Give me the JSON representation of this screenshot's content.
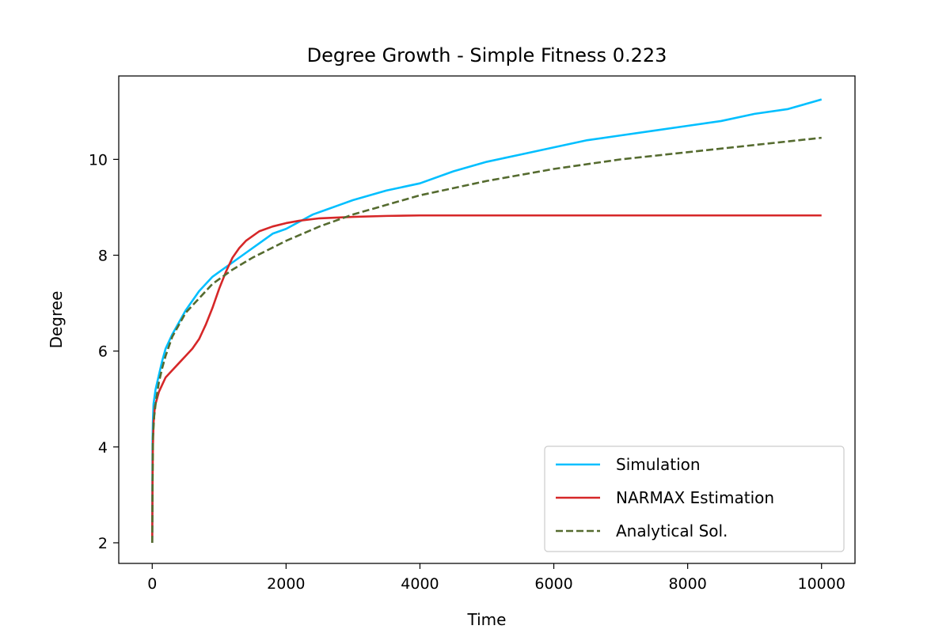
{
  "chart_data": {
    "type": "line",
    "title": "Degree Growth - Simple Fitness 0.223",
    "xlabel": "Time",
    "ylabel": "Degree",
    "xlim": [
      -500,
      10500
    ],
    "ylim": [
      1.57,
      11.74
    ],
    "xticks": [
      0,
      2000,
      4000,
      6000,
      8000,
      10000
    ],
    "xtick_labels": [
      "0",
      "2000",
      "4000",
      "6000",
      "8000",
      "10000"
    ],
    "yticks": [
      2,
      4,
      6,
      8,
      10
    ],
    "ytick_labels": [
      "2",
      "4",
      "6",
      "8",
      "10"
    ],
    "grid": false,
    "legend_position": "lower-right",
    "series": [
      {
        "name": "Simulation",
        "color": "#00bfff",
        "style": "solid",
        "x": [
          0,
          5,
          10,
          20,
          50,
          100,
          150,
          200,
          300,
          400,
          500,
          600,
          700,
          800,
          900,
          1000,
          1200,
          1400,
          1600,
          1800,
          2000,
          2200,
          2400,
          2600,
          2800,
          3000,
          3500,
          4000,
          4500,
          5000,
          5500,
          6000,
          6500,
          7000,
          7500,
          8000,
          8500,
          9000,
          9500,
          10000
        ],
        "y": [
          2.0,
          4.1,
          4.5,
          4.9,
          5.2,
          5.5,
          5.8,
          6.05,
          6.35,
          6.6,
          6.85,
          7.05,
          7.25,
          7.4,
          7.55,
          7.65,
          7.85,
          8.05,
          8.25,
          8.45,
          8.55,
          8.7,
          8.85,
          8.95,
          9.05,
          9.15,
          9.35,
          9.5,
          9.75,
          9.95,
          10.1,
          10.25,
          10.4,
          10.5,
          10.6,
          10.7,
          10.8,
          10.95,
          11.05,
          11.25
        ]
      },
      {
        "name": "NARMAX Estimation",
        "color": "#d62728",
        "style": "solid",
        "x": [
          0,
          5,
          10,
          20,
          40,
          70,
          100,
          150,
          200,
          300,
          400,
          500,
          600,
          700,
          800,
          900,
          1000,
          1100,
          1200,
          1300,
          1400,
          1600,
          1800,
          2000,
          2200,
          2500,
          3000,
          3500,
          4000,
          5000,
          6000,
          7000,
          8000,
          9000,
          10000
        ],
        "y": [
          2.0,
          3.3,
          4.0,
          4.5,
          4.85,
          5.0,
          5.15,
          5.3,
          5.45,
          5.6,
          5.75,
          5.9,
          6.05,
          6.25,
          6.55,
          6.9,
          7.3,
          7.65,
          7.95,
          8.15,
          8.3,
          8.5,
          8.6,
          8.67,
          8.72,
          8.77,
          8.8,
          8.82,
          8.83,
          8.83,
          8.83,
          8.83,
          8.83,
          8.83,
          8.83
        ]
      },
      {
        "name": "Analytical Sol.",
        "color": "#556b2f",
        "style": "dashed",
        "x": [
          0,
          10,
          30,
          60,
          100,
          150,
          200,
          300,
          400,
          500,
          700,
          900,
          1200,
          1500,
          2000,
          2500,
          3000,
          3500,
          4000,
          5000,
          6000,
          7000,
          8000,
          9000,
          10000
        ],
        "y": [
          2.0,
          4.2,
          4.65,
          5.0,
          5.35,
          5.65,
          5.9,
          6.3,
          6.55,
          6.8,
          7.1,
          7.4,
          7.7,
          7.95,
          8.3,
          8.6,
          8.85,
          9.05,
          9.25,
          9.55,
          9.8,
          10.0,
          10.15,
          10.3,
          10.45
        ]
      }
    ]
  }
}
